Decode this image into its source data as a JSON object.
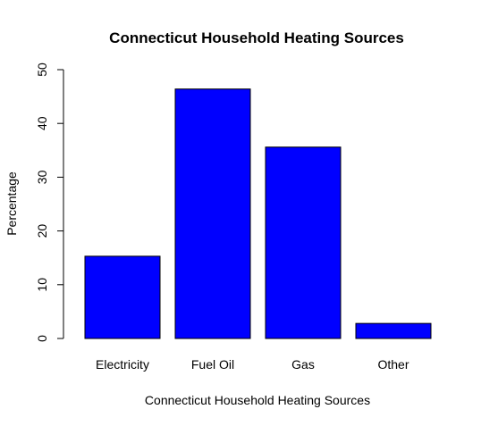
{
  "chart_data": {
    "type": "bar",
    "title": "Connecticut Household Heating Sources",
    "xlabel": "Connecticut Household Heating Sources",
    "ylabel": "Percentage",
    "categories": [
      "Electricity",
      "Fuel Oil",
      "Gas",
      "Other"
    ],
    "values": [
      15.3,
      46.4,
      35.6,
      2.8
    ],
    "ylim": [
      0,
      50
    ],
    "yticks": [
      "0",
      "10",
      "20",
      "30",
      "40",
      "50"
    ],
    "bar_color": "#0000ff",
    "bar_border_color": "#000000",
    "grid": false,
    "legend": "none"
  }
}
